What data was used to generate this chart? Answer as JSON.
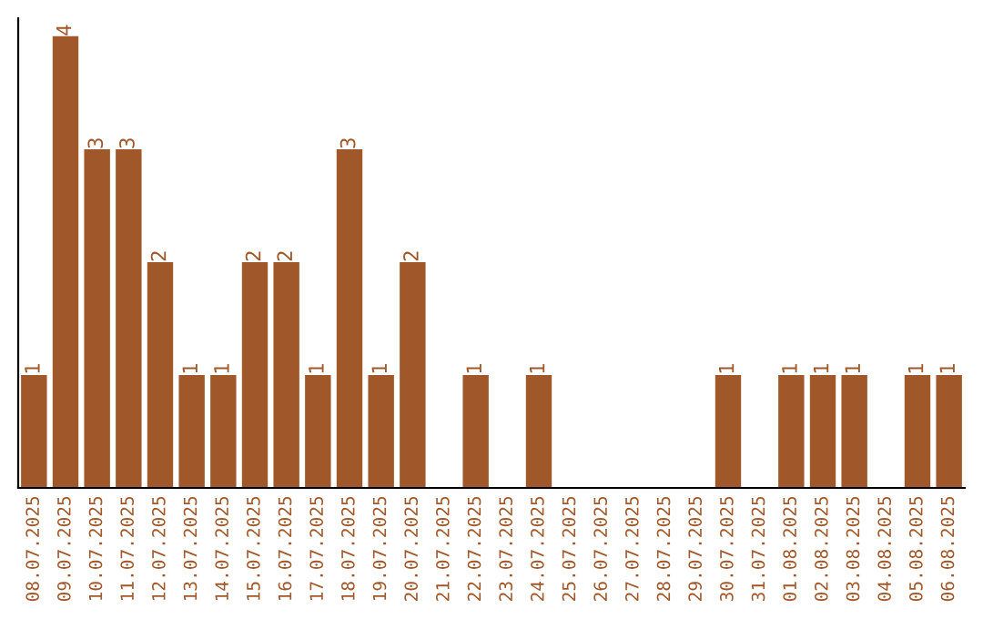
{
  "chart_data": {
    "type": "bar",
    "categories": [
      "08.07.2025",
      "09.07.2025",
      "10.07.2025",
      "11.07.2025",
      "12.07.2025",
      "13.07.2025",
      "14.07.2025",
      "15.07.2025",
      "16.07.2025",
      "17.07.2025",
      "18.07.2025",
      "19.07.2025",
      "20.07.2025",
      "21.07.2025",
      "22.07.2025",
      "23.07.2025",
      "24.07.2025",
      "25.07.2025",
      "26.07.2025",
      "27.07.2025",
      "28.07.2025",
      "29.07.2025",
      "30.07.2025",
      "31.07.2025",
      "01.08.2025",
      "02.08.2025",
      "03.08.2025",
      "04.08.2025",
      "05.08.2025",
      "06.08.2025"
    ],
    "values": [
      1,
      4,
      3,
      3,
      2,
      1,
      1,
      2,
      2,
      1,
      3,
      1,
      2,
      0,
      1,
      0,
      1,
      0,
      0,
      0,
      0,
      0,
      1,
      0,
      1,
      1,
      1,
      0,
      1,
      1
    ],
    "value_labels": [
      "1",
      "4",
      "3",
      "3",
      "2",
      "1",
      "1",
      "2",
      "2",
      "1",
      "3",
      "1",
      "2",
      null,
      "1",
      null,
      "1",
      null,
      null,
      null,
      null,
      null,
      "1",
      null,
      "1",
      "1",
      "1",
      null,
      "1",
      "1"
    ],
    "color": "#a0582a",
    "tick_labels": "x",
    "grid": false,
    "legend": false
  }
}
